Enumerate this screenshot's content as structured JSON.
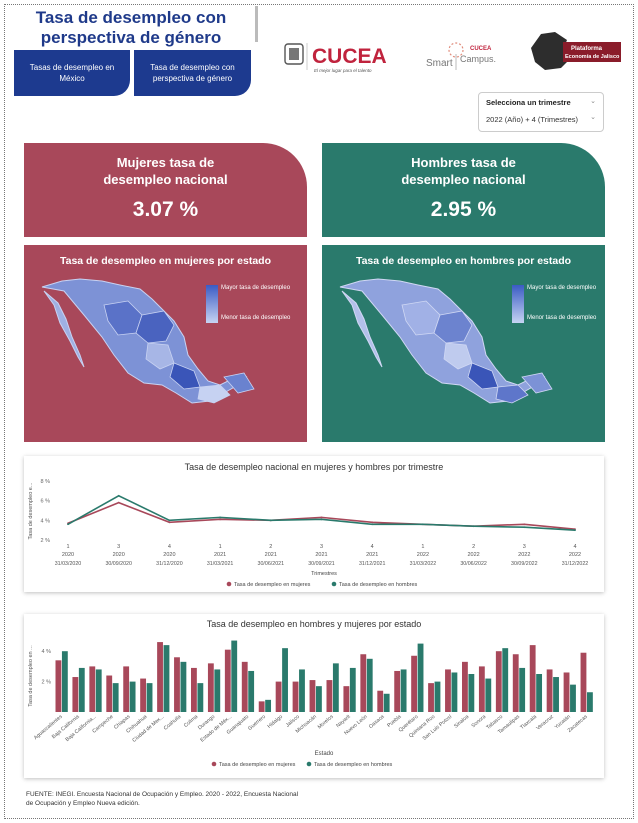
{
  "header": {
    "title": "Tasa de desempleo con perspectiva de género",
    "nav": [
      "Tasas de desempleo en México",
      "Tasa de desempleo con perspectiva de género"
    ]
  },
  "logos": {
    "cucea_name": "CUCEA",
    "cucea_tagline": "El mejor lugar para el talento",
    "smart_1": "Smart",
    "smart_2": "CUCEA",
    "smart_3": "Campus.",
    "plat_1": "Plataforma",
    "plat_2": "Economía de Jalisco"
  },
  "selector": {
    "label": "Selecciona un trimestre",
    "value": "2022 (Año) + 4 (Trimestres)"
  },
  "kpis": {
    "women_title": "Mujeres tasa de desempleo nacional",
    "women_value": "3.07 %",
    "men_title": "Hombres tasa de desempleo nacional",
    "men_value": "2.95 %"
  },
  "maps": {
    "women_title": "Tasa de desempleo en mujeres por estado",
    "men_title": "Tasa de desempleo en hombres por estado",
    "legend_high": "Mayor tasa de desempleo",
    "legend_low": "Menor tasa de desempleo"
  },
  "colors": {
    "women": "#a8485a",
    "men": "#2a7a6c",
    "navy": "#1d3a8f"
  },
  "footer": {
    "line1": "FUENTE: INEGI. Encuesta Nacional de Ocupación y Empleo. 2020 - 2022, Encuesta Nacional",
    "line2": "de Ocupación y Empleo Nueva edición."
  },
  "chart_data": [
    {
      "type": "line",
      "title": "Tasa de desempleo nacional en mujeres y hombres por trimestre",
      "xlabel": "Trimestres",
      "ylabel": "Tasa de desempleo e...",
      "ytick_labels": [
        "2 %",
        "4 %",
        "6 %",
        "8 %"
      ],
      "ylim": [
        2,
        8
      ],
      "quarters": [
        "1",
        "3",
        "4",
        "1",
        "2",
        "3",
        "4",
        "1",
        "2",
        "3",
        "4"
      ],
      "years": [
        "2020",
        "2020",
        "2020",
        "2021",
        "2021",
        "2021",
        "2021",
        "2022",
        "2022",
        "2022",
        "2022"
      ],
      "dates": [
        "31/03/2020",
        "30/09/2020",
        "31/12/2020",
        "31/03/2021",
        "30/06/2021",
        "30/09/2021",
        "31/12/2021",
        "31/03/2022",
        "30/06/2022",
        "30/09/2022",
        "31/12/2022"
      ],
      "series": [
        {
          "name": "Tasa de desempleo en mujeres",
          "color": "#a8485a",
          "values": [
            3.7,
            5.8,
            3.8,
            4.1,
            4.0,
            4.3,
            3.8,
            3.6,
            3.4,
            3.6,
            3.1
          ]
        },
        {
          "name": "Tasa de desempleo en hombres",
          "color": "#2a7a6c",
          "values": [
            3.6,
            6.5,
            4.0,
            4.3,
            4.0,
            4.1,
            3.6,
            3.6,
            3.4,
            3.3,
            3.0
          ]
        }
      ]
    },
    {
      "type": "bar",
      "title": "Tasa de desempleo en hombres y mujeres por estado",
      "xlabel": "Estado",
      "ylabel": "Tasa de desempleo en ...",
      "ytick_labels": [
        "2 %",
        "4 %"
      ],
      "ylim": [
        0,
        5
      ],
      "categories": [
        "Aguascalientes",
        "Baja California",
        "Baja California...",
        "Campeche",
        "Chiapas",
        "Chihuahua",
        "Ciudad de Mex...",
        "Coahuila",
        "Colima",
        "Durango",
        "Estado de Méx...",
        "Guanajuato",
        "Guerrero",
        "Hidalgo",
        "Jalisco",
        "Michoacán",
        "Morelos",
        "Nayarit",
        "Nuevo León",
        "Oaxaca",
        "Puebla",
        "Querétaro",
        "Quintana Roo",
        "San Luis Potosí",
        "Sinaloa",
        "Sonora",
        "Tabasco",
        "Tamaulipas",
        "Tlaxcala",
        "Veracruz",
        "Yucatán",
        "Zacatecas"
      ],
      "series": [
        {
          "name": "Tasa de desempleo en mujeres",
          "color": "#a8485a",
          "values": [
            3.4,
            2.3,
            3.0,
            2.4,
            3.0,
            2.2,
            4.6,
            3.6,
            2.9,
            3.2,
            4.1,
            3.3,
            0.7,
            2.0,
            2.0,
            2.1,
            2.1,
            1.7,
            3.8,
            1.4,
            2.7,
            3.7,
            1.9,
            2.8,
            3.3,
            3.0,
            4.0,
            3.8,
            4.4,
            2.8,
            2.6,
            3.9
          ],
          "hidden_note": ""
        },
        {
          "name": "Tasa de desempleo en hombres",
          "color": "#2a7a6c",
          "values": [
            4.0,
            2.9,
            2.8,
            1.9,
            2.0,
            1.9,
            4.4,
            3.3,
            1.9,
            2.8,
            4.7,
            2.7,
            0.8,
            4.2,
            2.8,
            1.7,
            3.2,
            2.9,
            3.5,
            1.2,
            2.8,
            4.5,
            2.0,
            2.6,
            2.5,
            2.2,
            4.2,
            2.9,
            2.5,
            2.3,
            1.8,
            1.3
          ]
        }
      ]
    }
  ]
}
